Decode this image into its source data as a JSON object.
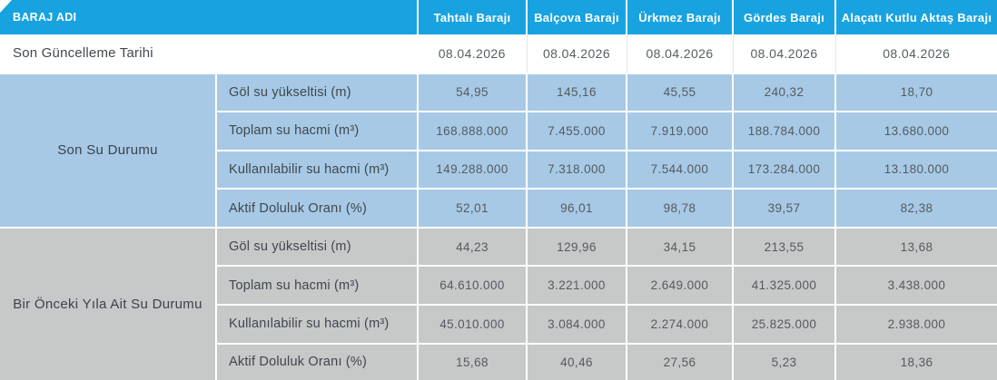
{
  "colors": {
    "header_bg": "#18a3e0",
    "header_text": "#ffffff",
    "section_recent_bg": "#a7c9e5",
    "section_previous_bg": "#c7c8c8",
    "update_row_bg": "#ffffff",
    "label_text": "#3f474f",
    "value_text": "#545b61"
  },
  "table": {
    "header": {
      "row_label": "BARAJ ADI",
      "dams": [
        "Tahtalı Barajı",
        "Balçova Barajı",
        "Ürkmez Barajı",
        "Gördes Barajı",
        "Alaçatı Kutlu Aktaş Barajı"
      ]
    },
    "update_row": {
      "label": "Son Güncelleme Tarihi",
      "values": [
        "08.04.2026",
        "08.04.2026",
        "08.04.2026",
        "08.04.2026",
        "08.04.2026"
      ]
    },
    "sections": [
      {
        "name": "Son Su Durumu",
        "rows": [
          {
            "label": "Göl su yükseltisi (m)",
            "values": [
              "54,95",
              "145,16",
              "45,55",
              "240,32",
              "18,70"
            ]
          },
          {
            "label": "Toplam su hacmi (m³)",
            "values": [
              "168.888.000",
              "7.455.000",
              "7.919.000",
              "188.784.000",
              "13.680.000"
            ]
          },
          {
            "label": "Kullanılabilir su hacmi (m³)",
            "values": [
              "149.288.000",
              "7.318.000",
              "7.544.000",
              "173.284.000",
              "13.180.000"
            ]
          },
          {
            "label": "Aktif Doluluk Oranı (%)",
            "values": [
              "52,01",
              "96,01",
              "98,78",
              "39,57",
              "82,38"
            ]
          }
        ]
      },
      {
        "name": "Bir Önceki Yıla Ait Su Durumu",
        "rows": [
          {
            "label": "Göl su yükseltisi (m)",
            "values": [
              "44,23",
              "129,96",
              "34,15",
              "213,55",
              "13,68"
            ]
          },
          {
            "label": "Toplam su hacmi (m³)",
            "values": [
              "64.610.000",
              "3.221.000",
              "2.649.000",
              "41.325.000",
              "3.438.000"
            ]
          },
          {
            "label": "Kullanılabilir su hacmi (m³)",
            "values": [
              "45.010.000",
              "3.084.000",
              "2.274.000",
              "25.825.000",
              "2.938.000"
            ]
          },
          {
            "label": "Aktif Doluluk Oranı (%)",
            "values": [
              "15,68",
              "40,46",
              "27,56",
              "5,23",
              "18,36"
            ]
          }
        ]
      }
    ]
  }
}
